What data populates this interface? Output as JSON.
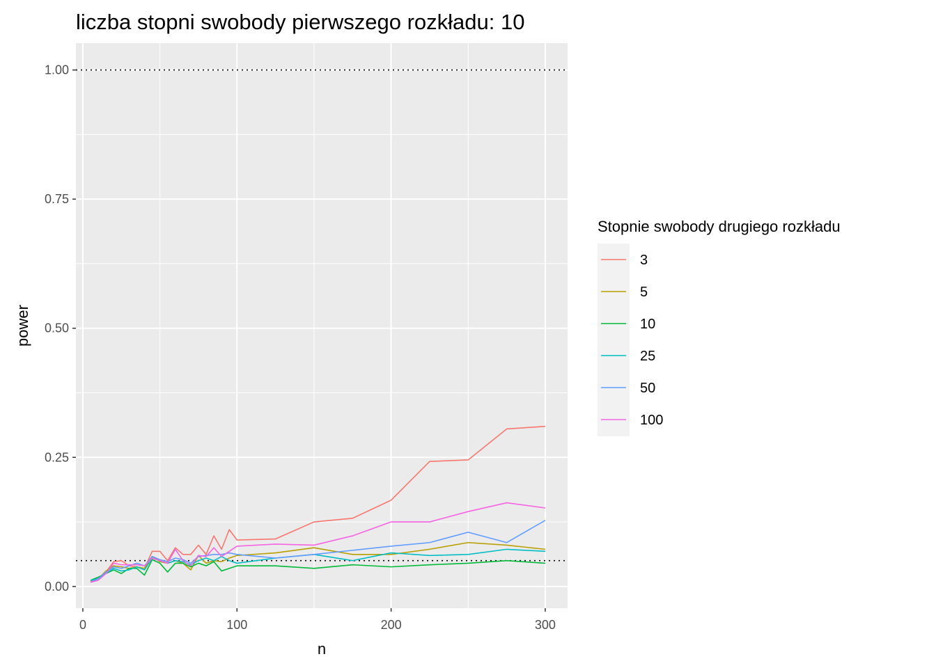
{
  "chart_data": {
    "type": "line",
    "title": "liczba stopni swobody pierwszego rozkładu: 10",
    "xlabel": "n",
    "ylabel": "power",
    "xlim": [
      -4.5,
      314.5
    ],
    "ylim": [
      -0.042,
      1.052
    ],
    "x_ticks": [
      0,
      100,
      200,
      300
    ],
    "x_tick_labels": [
      "0",
      "100",
      "200",
      "300"
    ],
    "y_ticks": [
      0,
      0.25,
      0.5,
      0.75,
      1
    ],
    "y_tick_labels": [
      "0.00",
      "0.25",
      "0.50",
      "0.75",
      "1.00"
    ],
    "hlines": [
      0.05,
      1.0
    ],
    "grid": true,
    "legend": {
      "title": "Stopnie swobody drugiego rozkładu",
      "position": "right"
    },
    "x": [
      5,
      10,
      15,
      20,
      25,
      30,
      35,
      40,
      45,
      50,
      55,
      60,
      65,
      70,
      75,
      80,
      85,
      90,
      95,
      100,
      125,
      150,
      175,
      200,
      225,
      250,
      275,
      300
    ],
    "series": [
      {
        "name": "3",
        "color": "#F8766D",
        "values": [
          0.01,
          0.015,
          0.028,
          0.048,
          0.05,
          0.04,
          0.038,
          0.035,
          0.068,
          0.068,
          0.05,
          0.075,
          0.062,
          0.062,
          0.08,
          0.062,
          0.098,
          0.072,
          0.11,
          0.09,
          0.092,
          0.125,
          0.132,
          0.167,
          0.242,
          0.245,
          0.305,
          0.31
        ]
      },
      {
        "name": "5",
        "color": "#B79F00",
        "values": [
          0.012,
          0.015,
          0.03,
          0.04,
          0.038,
          0.035,
          0.038,
          0.035,
          0.058,
          0.048,
          0.045,
          0.05,
          0.045,
          0.032,
          0.06,
          0.045,
          0.05,
          0.048,
          0.055,
          0.06,
          0.065,
          0.075,
          0.062,
          0.062,
          0.072,
          0.085,
          0.08,
          0.072
        ]
      },
      {
        "name": "10",
        "color": "#00BA38",
        "values": [
          0.012,
          0.018,
          0.025,
          0.032,
          0.025,
          0.035,
          0.035,
          0.022,
          0.052,
          0.045,
          0.028,
          0.045,
          0.045,
          0.038,
          0.045,
          0.04,
          0.048,
          0.03,
          0.035,
          0.04,
          0.04,
          0.035,
          0.042,
          0.038,
          0.042,
          0.045,
          0.05,
          0.045
        ]
      },
      {
        "name": "25",
        "color": "#00BFC4",
        "values": [
          0.012,
          0.015,
          0.025,
          0.035,
          0.03,
          0.032,
          0.038,
          0.032,
          0.055,
          0.05,
          0.045,
          0.05,
          0.048,
          0.042,
          0.05,
          0.055,
          0.05,
          0.058,
          0.05,
          0.045,
          0.055,
          0.062,
          0.05,
          0.065,
          0.06,
          0.062,
          0.072,
          0.068
        ]
      },
      {
        "name": "50",
        "color": "#619CFF",
        "values": [
          0.008,
          0.015,
          0.028,
          0.038,
          0.035,
          0.04,
          0.045,
          0.04,
          0.058,
          0.052,
          0.048,
          0.055,
          0.052,
          0.045,
          0.058,
          0.06,
          0.062,
          0.062,
          0.065,
          0.062,
          0.055,
          0.062,
          0.07,
          0.078,
          0.085,
          0.105,
          0.085,
          0.128
        ]
      },
      {
        "name": "100",
        "color": "#F564E3",
        "values": [
          0.008,
          0.012,
          0.025,
          0.045,
          0.042,
          0.042,
          0.042,
          0.04,
          0.055,
          0.05,
          0.045,
          0.072,
          0.05,
          0.04,
          0.06,
          0.058,
          0.075,
          0.058,
          0.068,
          0.078,
          0.082,
          0.08,
          0.098,
          0.125,
          0.125,
          0.145,
          0.162,
          0.152
        ]
      }
    ]
  }
}
